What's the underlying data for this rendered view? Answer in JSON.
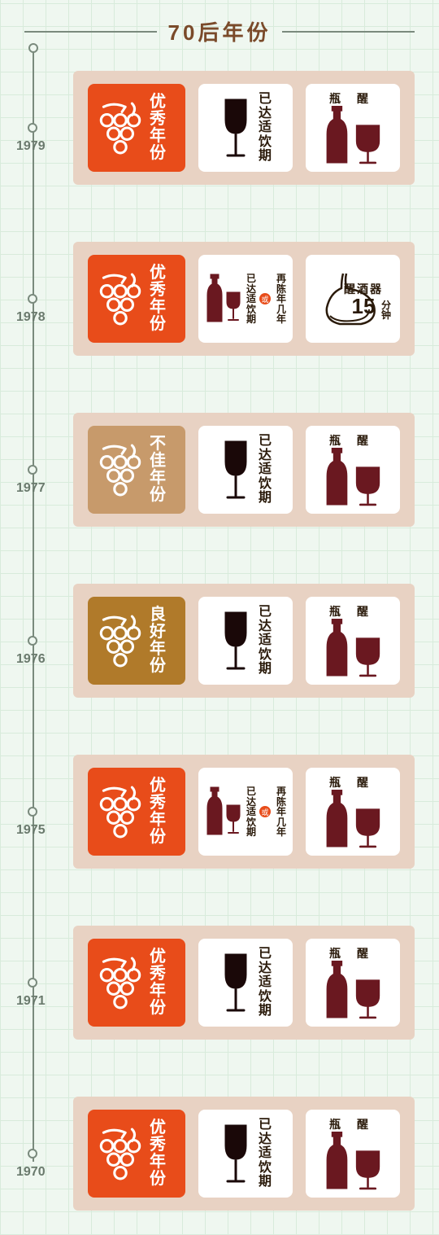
{
  "header": {
    "title": "70后年份"
  },
  "colors": {
    "excellent": "#e84c1a",
    "bad": "#c79a6b",
    "good": "#b07a2a",
    "wine_dark": "#1a0808",
    "wine_red": "#6a1820",
    "text": "#2a1a0a",
    "card_bg": "#ffffff",
    "entry_bg": "#e8d2c3"
  },
  "labels": {
    "excellent": "优秀年份",
    "bad": "不佳年份",
    "good": "良好年份",
    "drink_now": "已达适饮期",
    "age_more": "再陈年几年",
    "bottle_decant": "瓶醒",
    "decanter": "醒酒器",
    "decanter_mins": "15",
    "decanter_unit": "分钟",
    "or": "或"
  },
  "timeline": [
    {
      "year": "1979",
      "rating": "excellent",
      "status": "drink_now",
      "decant": "bottle"
    },
    {
      "year": "1978",
      "rating": "excellent",
      "status": "drink_or_age",
      "decant": "decanter"
    },
    {
      "year": "1977",
      "rating": "bad",
      "status": "drink_now",
      "decant": "bottle"
    },
    {
      "year": "1976",
      "rating": "good",
      "status": "drink_now",
      "decant": "bottle"
    },
    {
      "year": "1975",
      "rating": "excellent",
      "status": "drink_or_age",
      "decant": "bottle"
    },
    {
      "year": "1971",
      "rating": "excellent",
      "status": "drink_now",
      "decant": "bottle"
    },
    {
      "year": "1970",
      "rating": "excellent",
      "status": "drink_now",
      "decant": "bottle"
    }
  ]
}
